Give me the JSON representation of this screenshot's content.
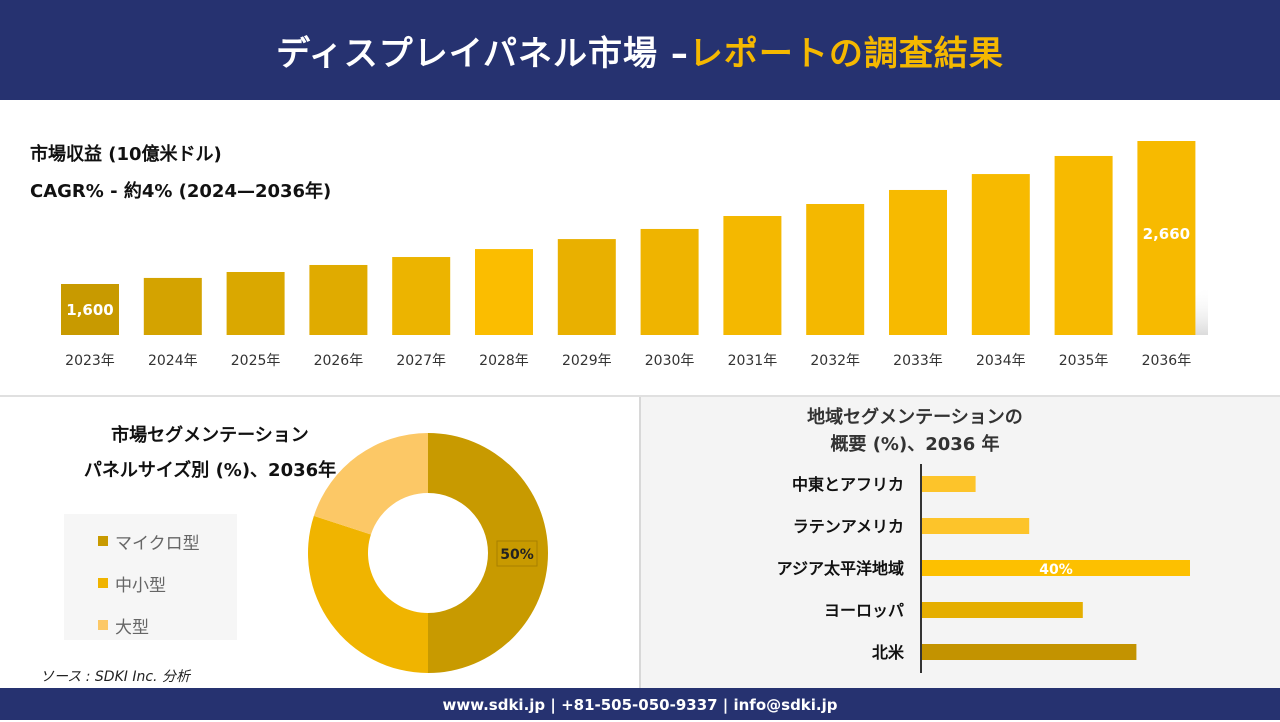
{
  "header": {
    "title_main": "ディスプレイパネル市場 –",
    "title_accent": "レポートの調査結果"
  },
  "colors": {
    "navy": "#263270",
    "accent": "#f5b800"
  },
  "chart_data": [
    {
      "type": "bar",
      "title": "市場収益 (10億米ドル)",
      "subtitle": "CAGR% - 約4% (2024—2036年)",
      "categories": [
        "2023年",
        "2024年",
        "2025年",
        "2026年",
        "2027年",
        "2028年",
        "2029年",
        "2030年",
        "2031年",
        "2032年",
        "2033年",
        "2034年",
        "2035年",
        "2036年"
      ],
      "values": [
        1600,
        1645,
        1689,
        1741,
        1800,
        1859,
        1933,
        2008,
        2104,
        2193,
        2297,
        2415,
        2549,
        2660
      ],
      "data_labels": {
        "0": "1,600",
        "13": "2,660"
      },
      "colors": [
        "#c89a00",
        "#d4a300",
        "#daa800",
        "#e0ab00",
        "#ecb400",
        "#fbbd00",
        "#e9b000",
        "#efb400",
        "#f4b800",
        "#f4b800",
        "#f7ba00",
        "#f7ba00",
        "#f7ba00",
        "#f7ba00"
      ],
      "grid": false
    },
    {
      "type": "pie",
      "title_line1": "市場セグメンテーション",
      "title_line2": "パネルサイズ別 (%)、2036年",
      "categories": [
        "マイクロ型",
        "中小型",
        "大型"
      ],
      "values": [
        50,
        30,
        20
      ],
      "colors": [
        "#c89a00",
        "#f0b400",
        "#fcc866"
      ],
      "data_labels": {
        "0": "50%"
      },
      "legend": "left"
    },
    {
      "type": "bar",
      "orientation": "horizontal",
      "title_line1": "地域セグメンテーションの",
      "title_line2": "概要 (%)、2036 年",
      "categories": [
        "中東とアフリカ",
        "ラテンアメリカ",
        "アジア太平洋地域",
        "ヨーロッパ",
        "北米"
      ],
      "values": [
        8,
        16,
        40,
        24,
        32
      ],
      "colors": [
        "#fdc42a",
        "#fdc42a",
        "#fdc000",
        "#e5ae00",
        "#c39300"
      ],
      "data_labels": {
        "2": "40%"
      }
    }
  ],
  "source": "ソース : SDKI Inc. 分析",
  "footer": "www.sdki.jp | +81-505-050-9337 | info@sdki.jp"
}
